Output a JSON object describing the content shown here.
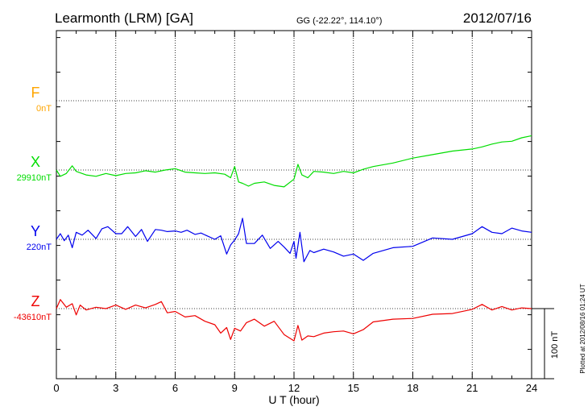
{
  "header": {
    "station": "Learmonth (LRM)  [GA]",
    "coords": "GG (-22.22°, 114.10°)",
    "date": "2012/07/16"
  },
  "footer_note": "Plotted at 2012/08/16 01:24 UT",
  "colors": {
    "F": "#ffa500",
    "X": "#00dd00",
    "Y": "#0000ee",
    "Z": "#ee0000",
    "axis": "#000000"
  },
  "chart_data": {
    "type": "line",
    "xlabel": "U T (hour)",
    "xlim": [
      0,
      24
    ],
    "xticks": [
      "0",
      "3",
      "6",
      "9",
      "12",
      "15",
      "18",
      "21",
      "24"
    ],
    "grid": true,
    "scale_bar": "100 nT",
    "components": [
      {
        "name": "F",
        "baseline": "0nT",
        "baseline_nT": 0,
        "values": []
      },
      {
        "name": "X",
        "baseline": "29910nT",
        "baseline_nT": 29910,
        "x": [
          0,
          0.2,
          0.5,
          0.8,
          1,
          1.5,
          2,
          2.5,
          3,
          3.5,
          4,
          4.5,
          5,
          5.5,
          6,
          6.5,
          7,
          7.5,
          8,
          8.5,
          8.8,
          9,
          9.2,
          9.4,
          9.7,
          10,
          10.5,
          11,
          11.5,
          12,
          12.2,
          12.4,
          12.7,
          13,
          13.5,
          14,
          14.5,
          15,
          15.5,
          16,
          17,
          18,
          19,
          20,
          21,
          21.5,
          22,
          22.5,
          23,
          23.5,
          24
        ],
        "values": [
          29910,
          29901,
          29905,
          29916,
          29908,
          29903,
          29901,
          29905,
          29902,
          29905,
          29906,
          29909,
          29907,
          29910,
          29912,
          29907,
          29906,
          29905,
          29906,
          29904,
          29899,
          29915,
          29893,
          29891,
          29887,
          29891,
          29893,
          29888,
          29886,
          29897,
          29918,
          29903,
          29899,
          29908,
          29907,
          29905,
          29908,
          29906,
          29911,
          29915,
          29920,
          29927,
          29932,
          29937,
          29940,
          29943,
          29947,
          29950,
          29951,
          29956,
          29959
        ]
      },
      {
        "name": "Y",
        "baseline": "220nT",
        "baseline_nT": 220,
        "x": [
          0,
          0.2,
          0.4,
          0.6,
          0.8,
          1,
          1.3,
          1.6,
          2,
          2.3,
          2.6,
          3,
          3.3,
          3.6,
          4,
          4.3,
          4.6,
          5,
          5.3,
          5.6,
          6,
          6.3,
          6.6,
          7,
          7.3,
          7.6,
          8,
          8.3,
          8.6,
          8.8,
          9,
          9.2,
          9.4,
          9.6,
          10,
          10.4,
          10.8,
          11.2,
          11.5,
          11.8,
          12,
          12.1,
          12.3,
          12.5,
          12.8,
          13,
          13.5,
          14,
          14.5,
          15,
          15.5,
          16,
          17,
          18,
          19,
          20,
          21,
          21.5,
          22,
          22.5,
          23,
          23.5,
          24
        ],
        "values": [
          220,
          228,
          218,
          226,
          208,
          230,
          226,
          233,
          221,
          235,
          238,
          228,
          228,
          238,
          224,
          234,
          217,
          234,
          233,
          231,
          232,
          230,
          233,
          227,
          229,
          225,
          220,
          225,
          199,
          212,
          219,
          228,
          250,
          214,
          214,
          226,
          207,
          217,
          209,
          200,
          217,
          193,
          230,
          188,
          204,
          201,
          206,
          202,
          196,
          199,
          190,
          200,
          208,
          210,
          222,
          220,
          228,
          238,
          230,
          228,
          236,
          232,
          230
        ]
      },
      {
        "name": "Z",
        "baseline": "-43610nT",
        "baseline_nT": -43610,
        "x": [
          0,
          0.2,
          0.5,
          0.8,
          1,
          1.2,
          1.5,
          2,
          2.5,
          3,
          3.5,
          4,
          4.5,
          5,
          5.3,
          5.6,
          6,
          6.5,
          7,
          7.5,
          8,
          8.3,
          8.6,
          8.8,
          9,
          9.3,
          9.6,
          10,
          10.5,
          11,
          11.5,
          12,
          12.2,
          12.4,
          12.7,
          13,
          13.5,
          14,
          14.5,
          15,
          15.5,
          16,
          17,
          18,
          19,
          20,
          21,
          21.5,
          22,
          22.5,
          23,
          23.5,
          24
        ],
        "values": [
          -43610,
          -43597,
          -43608,
          -43603,
          -43619,
          -43605,
          -43612,
          -43608,
          -43610,
          -43605,
          -43611,
          -43605,
          -43609,
          -43604,
          -43600,
          -43616,
          -43614,
          -43622,
          -43620,
          -43628,
          -43633,
          -43645,
          -43637,
          -43654,
          -43638,
          -43642,
          -43630,
          -43625,
          -43635,
          -43628,
          -43647,
          -43656,
          -43634,
          -43655,
          -43649,
          -43650,
          -43645,
          -43643,
          -43642,
          -43646,
          -43640,
          -43629,
          -43625,
          -43624,
          -43618,
          -43617,
          -43611,
          -43604,
          -43612,
          -43607,
          -43612,
          -43609,
          -43610
        ]
      }
    ]
  }
}
